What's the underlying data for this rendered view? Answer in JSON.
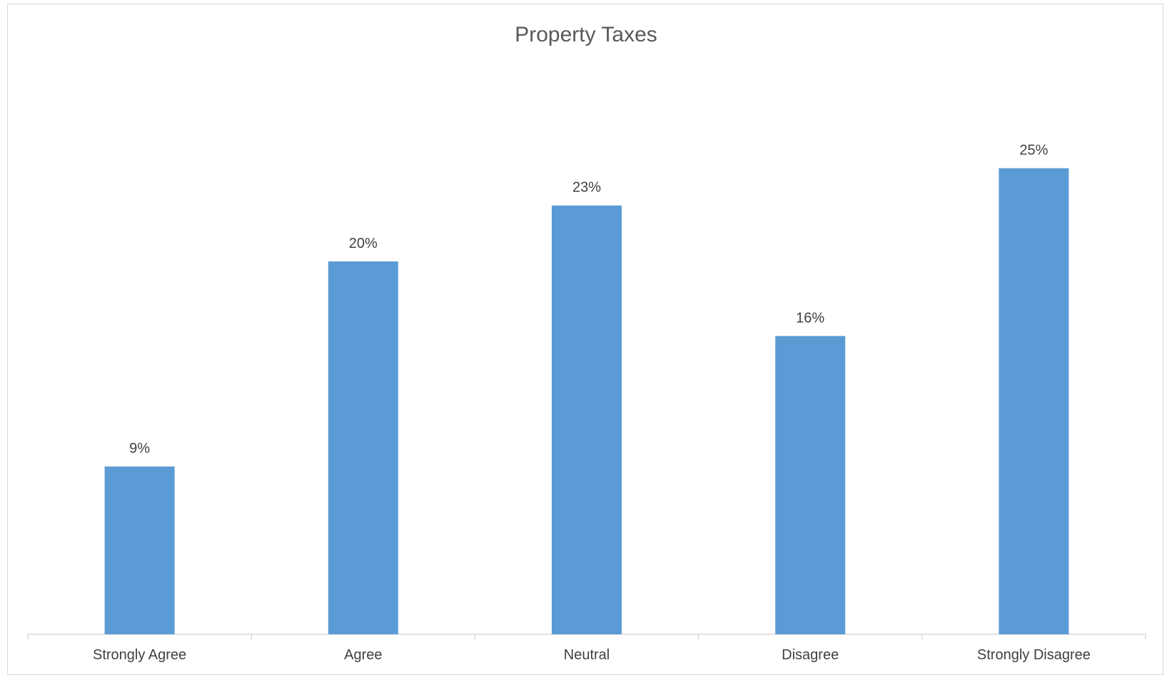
{
  "chart_data": {
    "type": "bar",
    "title": "Property Taxes",
    "categories": [
      "Strongly Agree",
      "Agree",
      "Neutral",
      "Disagree",
      "Strongly Disagree"
    ],
    "values": [
      9,
      20,
      23,
      16,
      25
    ],
    "data_labels": [
      "9%",
      "20%",
      "23%",
      "16%",
      "25%"
    ],
    "unit": "%",
    "ylim": [
      0,
      25
    ],
    "xlabel": "",
    "ylabel": "",
    "grid": false,
    "legend": "none",
    "colors": {
      "bar": "#5b9bd5",
      "axis": "#d9d9d9",
      "text": "#404040",
      "title": "#595959"
    }
  }
}
